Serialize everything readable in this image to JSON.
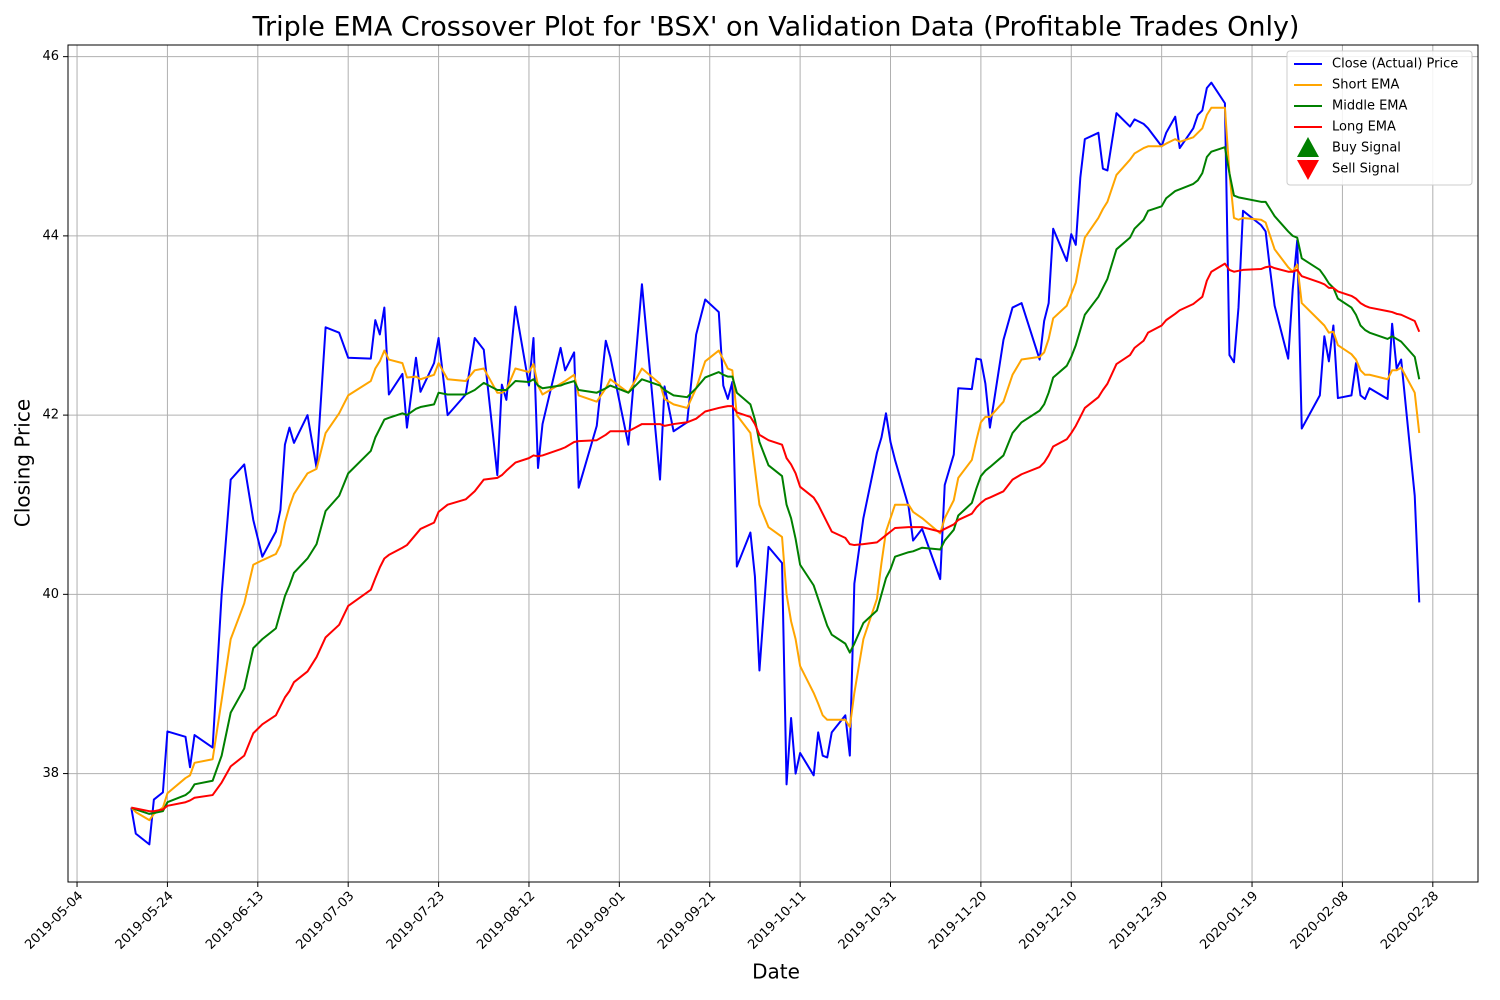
{
  "chart_data": {
    "type": "line",
    "title": "Triple EMA Crossover Plot for 'BSX' on Validation Data (Profitable Trades Only)",
    "xlabel": "Date",
    "ylabel": "Closing Price",
    "grid": true,
    "legend": "upper right",
    "xlim": [
      "2019-05-02",
      "2020-03-09"
    ],
    "xticks": [
      "2019-05-04",
      "2019-05-24",
      "2019-06-13",
      "2019-07-03",
      "2019-07-23",
      "2019-08-12",
      "2019-09-01",
      "2019-09-21",
      "2019-10-11",
      "2019-10-31",
      "2019-11-20",
      "2019-12-10",
      "2019-12-30",
      "2020-01-19",
      "2020-02-08",
      "2020-02-28"
    ],
    "ylim": [
      36.79,
      46.13
    ],
    "yticks": [
      38,
      40,
      42,
      44,
      46
    ],
    "x": [
      "2019-05-16",
      "2019-05-17",
      "2019-05-20",
      "2019-05-21",
      "2019-05-23",
      "2019-05-24",
      "2019-05-28",
      "2019-05-29",
      "2019-05-30",
      "2019-06-03",
      "2019-06-05",
      "2019-06-07",
      "2019-06-10",
      "2019-06-12",
      "2019-06-14",
      "2019-06-17",
      "2019-06-18",
      "2019-06-19",
      "2019-06-20",
      "2019-06-21",
      "2019-06-24",
      "2019-06-26",
      "2019-06-28",
      "2019-07-01",
      "2019-07-03",
      "2019-07-08",
      "2019-07-09",
      "2019-07-10",
      "2019-07-11",
      "2019-07-12",
      "2019-07-15",
      "2019-07-16",
      "2019-07-18",
      "2019-07-19",
      "2019-07-22",
      "2019-07-23",
      "2019-07-25",
      "2019-07-29",
      "2019-07-31",
      "2019-08-02",
      "2019-08-05",
      "2019-08-06",
      "2019-08-07",
      "2019-08-09",
      "2019-08-12",
      "2019-08-13",
      "2019-08-14",
      "2019-08-15",
      "2019-08-19",
      "2019-08-20",
      "2019-08-22",
      "2019-08-23",
      "2019-08-27",
      "2019-08-29",
      "2019-08-30",
      "2019-09-03",
      "2019-09-06",
      "2019-09-10",
      "2019-09-11",
      "2019-09-13",
      "2019-09-16",
      "2019-09-18",
      "2019-09-20",
      "2019-09-23",
      "2019-09-24",
      "2019-09-25",
      "2019-09-26",
      "2019-09-27",
      "2019-09-30",
      "2019-10-01",
      "2019-10-02",
      "2019-10-04",
      "2019-10-07",
      "2019-10-08",
      "2019-10-09",
      "2019-10-10",
      "2019-10-11",
      "2019-10-14",
      "2019-10-15",
      "2019-10-16",
      "2019-10-17",
      "2019-10-18",
      "2019-10-21",
      "2019-10-22",
      "2019-10-23",
      "2019-10-25",
      "2019-10-28",
      "2019-10-29",
      "2019-10-30",
      "2019-10-31",
      "2019-11-01",
      "2019-11-04",
      "2019-11-05",
      "2019-11-07",
      "2019-11-11",
      "2019-11-12",
      "2019-11-14",
      "2019-11-15",
      "2019-11-18",
      "2019-11-19",
      "2019-11-20",
      "2019-11-21",
      "2019-11-22",
      "2019-11-25",
      "2019-11-27",
      "2019-11-29",
      "2019-12-03",
      "2019-12-04",
      "2019-12-05",
      "2019-12-06",
      "2019-12-09",
      "2019-12-10",
      "2019-12-11",
      "2019-12-12",
      "2019-12-13",
      "2019-12-16",
      "2019-12-17",
      "2019-12-18",
      "2019-12-20",
      "2019-12-23",
      "2019-12-24",
      "2019-12-26",
      "2019-12-27",
      "2019-12-30",
      "2019-12-31",
      "2020-01-02",
      "2020-01-03",
      "2020-01-06",
      "2020-01-07",
      "2020-01-08",
      "2020-01-09",
      "2020-01-10",
      "2020-01-13",
      "2020-01-14",
      "2020-01-15",
      "2020-01-16",
      "2020-01-17",
      "2020-01-21",
      "2020-01-22",
      "2020-01-23",
      "2020-01-24",
      "2020-01-27",
      "2020-01-28",
      "2020-01-29",
      "2020-01-30",
      "2020-02-03",
      "2020-02-04",
      "2020-02-05",
      "2020-02-06",
      "2020-02-07",
      "2020-02-10",
      "2020-02-11",
      "2020-02-12",
      "2020-02-13",
      "2020-02-14",
      "2020-02-18",
      "2020-02-19",
      "2020-02-20",
      "2020-02-21",
      "2020-02-24",
      "2020-02-25"
    ],
    "series": [
      {
        "name": "Close (Actual) Price",
        "color": "#0000ff",
        "values": [
          37.62,
          37.33,
          37.21,
          37.71,
          37.79,
          38.47,
          38.41,
          38.07,
          38.43,
          38.29,
          40.0,
          41.28,
          41.45,
          40.83,
          40.42,
          40.7,
          40.94,
          41.67,
          41.86,
          41.69,
          42.0,
          41.41,
          42.98,
          42.92,
          42.64,
          42.63,
          43.06,
          42.9,
          43.2,
          42.23,
          42.46,
          41.86,
          42.64,
          42.26,
          42.58,
          42.86,
          42.0,
          42.23,
          42.86,
          42.73,
          41.33,
          42.34,
          42.17,
          43.21,
          42.33,
          42.86,
          41.41,
          41.9,
          42.75,
          42.5,
          42.7,
          41.19,
          41.88,
          42.83,
          42.65,
          41.67,
          43.46,
          41.28,
          42.32,
          41.82,
          41.92,
          42.9,
          43.29,
          43.15,
          42.33,
          42.18,
          42.37,
          40.31,
          40.69,
          40.2,
          39.15,
          40.53,
          40.35,
          37.88,
          38.62,
          38.0,
          38.23,
          37.98,
          38.46,
          38.2,
          38.18,
          38.46,
          38.65,
          38.2,
          40.12,
          40.85,
          41.58,
          41.75,
          42.02,
          41.7,
          41.5,
          40.98,
          40.6,
          40.73,
          40.17,
          41.22,
          41.56,
          42.3,
          42.29,
          42.63,
          42.62,
          42.35,
          41.86,
          42.84,
          43.2,
          43.25,
          42.62,
          43.05,
          43.25,
          44.08,
          43.72,
          44.02,
          43.9,
          44.65,
          45.08,
          45.15,
          44.75,
          44.73,
          45.37,
          45.22,
          45.3,
          45.25,
          45.2,
          45.0,
          45.15,
          45.33,
          44.98,
          45.2,
          45.35,
          45.4,
          45.65,
          45.71,
          45.48,
          42.67,
          42.59,
          43.2,
          44.28,
          44.12,
          44.05,
          43.62,
          43.22,
          42.63,
          43.4,
          43.95,
          41.85,
          42.22,
          42.88,
          42.6,
          43.0,
          42.19,
          42.22,
          42.58,
          42.22,
          42.18,
          42.3,
          42.18,
          43.02,
          42.52,
          42.62,
          41.1,
          39.91
        ]
      },
      {
        "name": "Short EMA",
        "color": "#ffa500",
        "values": [
          37.62,
          37.57,
          37.48,
          37.55,
          37.62,
          37.78,
          37.95,
          37.98,
          38.12,
          38.16,
          38.82,
          39.5,
          39.9,
          40.33,
          40.38,
          40.45,
          40.55,
          40.8,
          40.98,
          41.12,
          41.35,
          41.4,
          41.8,
          42.02,
          42.22,
          42.38,
          42.52,
          42.6,
          42.72,
          42.62,
          42.58,
          42.42,
          42.43,
          42.4,
          42.45,
          42.58,
          42.4,
          42.38,
          42.5,
          42.52,
          42.25,
          42.25,
          42.28,
          42.52,
          42.48,
          42.57,
          42.33,
          42.23,
          42.35,
          42.38,
          42.45,
          42.22,
          42.15,
          42.3,
          42.4,
          42.25,
          42.52,
          42.35,
          42.18,
          42.12,
          42.08,
          42.3,
          42.6,
          42.72,
          42.62,
          42.52,
          42.5,
          42.0,
          41.8,
          41.4,
          41.0,
          40.75,
          40.64,
          40.0,
          39.7,
          39.5,
          39.2,
          38.9,
          38.78,
          38.65,
          38.6,
          38.6,
          38.6,
          38.52,
          38.9,
          39.5,
          39.95,
          40.35,
          40.7,
          40.85,
          41.0,
          41.0,
          40.92,
          40.85,
          40.68,
          40.85,
          41.05,
          41.3,
          41.5,
          41.72,
          41.92,
          41.98,
          41.98,
          42.15,
          42.45,
          42.62,
          42.65,
          42.7,
          42.85,
          43.08,
          43.22,
          43.35,
          43.48,
          43.75,
          43.98,
          44.2,
          44.3,
          44.38,
          44.68,
          44.85,
          44.92,
          44.98,
          45.0,
          45.0,
          45.03,
          45.08,
          45.05,
          45.1,
          45.15,
          45.2,
          45.35,
          45.43,
          45.43,
          44.7,
          44.2,
          44.18,
          44.2,
          44.18,
          44.15,
          44.0,
          43.85,
          43.65,
          43.6,
          43.68,
          43.25,
          43.05,
          43.0,
          42.92,
          42.93,
          42.78,
          42.68,
          42.62,
          42.5,
          42.45,
          42.45,
          42.4,
          42.5,
          42.5,
          42.53,
          42.25,
          41.8
        ]
      },
      {
        "name": "Middle EMA",
        "color": "#008000",
        "values": [
          37.62,
          37.6,
          37.55,
          37.56,
          37.58,
          37.68,
          37.76,
          37.8,
          37.88,
          37.92,
          38.2,
          38.68,
          38.95,
          39.4,
          39.5,
          39.62,
          39.8,
          39.98,
          40.1,
          40.24,
          40.4,
          40.56,
          40.93,
          41.1,
          41.35,
          41.6,
          41.75,
          41.85,
          41.95,
          41.97,
          42.02,
          42.0,
          42.07,
          42.09,
          42.12,
          42.25,
          42.23,
          42.23,
          42.28,
          42.36,
          42.28,
          42.28,
          42.28,
          42.38,
          42.37,
          42.4,
          42.33,
          42.3,
          42.33,
          42.35,
          42.38,
          42.28,
          42.25,
          42.3,
          42.33,
          42.25,
          42.4,
          42.33,
          42.28,
          42.22,
          42.2,
          42.3,
          42.42,
          42.48,
          42.45,
          42.43,
          42.43,
          42.25,
          42.12,
          41.95,
          41.7,
          41.44,
          41.32,
          41.0,
          40.85,
          40.62,
          40.33,
          40.1,
          39.95,
          39.8,
          39.65,
          39.55,
          39.45,
          39.35,
          39.45,
          39.68,
          39.82,
          40.0,
          40.18,
          40.28,
          40.42,
          40.47,
          40.48,
          40.52,
          40.5,
          40.6,
          40.72,
          40.88,
          41.02,
          41.18,
          41.32,
          41.38,
          41.42,
          41.55,
          41.8,
          41.92,
          42.05,
          42.12,
          42.25,
          42.42,
          42.55,
          42.65,
          42.78,
          42.95,
          43.12,
          43.32,
          43.42,
          43.52,
          43.85,
          43.98,
          44.08,
          44.18,
          44.28,
          44.33,
          44.42,
          44.5,
          44.52,
          44.58,
          44.62,
          44.7,
          44.88,
          44.94,
          44.99,
          44.7,
          44.45,
          44.43,
          44.42,
          44.38,
          44.38,
          44.3,
          44.22,
          44.05,
          44.0,
          43.98,
          43.75,
          43.62,
          43.55,
          43.47,
          43.42,
          43.3,
          43.2,
          43.12,
          43.0,
          42.95,
          42.92,
          42.85,
          42.88,
          42.85,
          42.82,
          42.65,
          42.4
        ]
      },
      {
        "name": "Long EMA",
        "color": "#ff0000",
        "values": [
          37.62,
          37.61,
          37.58,
          37.58,
          37.6,
          37.64,
          37.68,
          37.7,
          37.73,
          37.76,
          37.9,
          38.08,
          38.2,
          38.45,
          38.55,
          38.65,
          38.75,
          38.85,
          38.92,
          39.02,
          39.14,
          39.3,
          39.52,
          39.66,
          39.87,
          40.05,
          40.18,
          40.3,
          40.4,
          40.44,
          40.52,
          40.55,
          40.67,
          40.73,
          40.8,
          40.92,
          41.0,
          41.06,
          41.15,
          41.28,
          41.3,
          41.33,
          41.38,
          41.47,
          41.52,
          41.55,
          41.54,
          41.55,
          41.62,
          41.64,
          41.7,
          41.71,
          41.72,
          41.78,
          41.82,
          41.82,
          41.9,
          41.9,
          41.88,
          41.9,
          41.92,
          41.96,
          42.04,
          42.08,
          42.09,
          42.1,
          42.1,
          42.03,
          41.98,
          41.9,
          41.78,
          41.72,
          41.67,
          41.52,
          41.45,
          41.35,
          41.2,
          41.08,
          41.0,
          40.9,
          40.8,
          40.7,
          40.63,
          40.56,
          40.55,
          40.56,
          40.58,
          40.62,
          40.66,
          40.7,
          40.74,
          40.75,
          40.75,
          40.75,
          40.7,
          40.73,
          40.78,
          40.83,
          40.9,
          40.97,
          41.02,
          41.06,
          41.08,
          41.15,
          41.28,
          41.34,
          41.42,
          41.47,
          41.55,
          41.65,
          41.73,
          41.8,
          41.88,
          41.98,
          42.08,
          42.2,
          42.28,
          42.35,
          42.57,
          42.67,
          42.75,
          42.83,
          42.92,
          43.0,
          43.06,
          43.13,
          43.17,
          43.24,
          43.28,
          43.32,
          43.5,
          43.6,
          43.69,
          43.62,
          43.6,
          43.61,
          43.62,
          43.63,
          43.65,
          43.66,
          43.64,
          43.6,
          43.6,
          43.62,
          43.55,
          43.48,
          43.46,
          43.42,
          43.42,
          43.38,
          43.33,
          43.3,
          43.25,
          43.22,
          43.2,
          43.16,
          43.15,
          43.13,
          43.12,
          43.05,
          42.93
        ]
      }
    ],
    "markers": [
      {
        "name": "Buy Signal",
        "color": "#008000",
        "marker": "^"
      },
      {
        "name": "Sell Signal",
        "color": "#ff0000",
        "marker": "v"
      }
    ]
  }
}
